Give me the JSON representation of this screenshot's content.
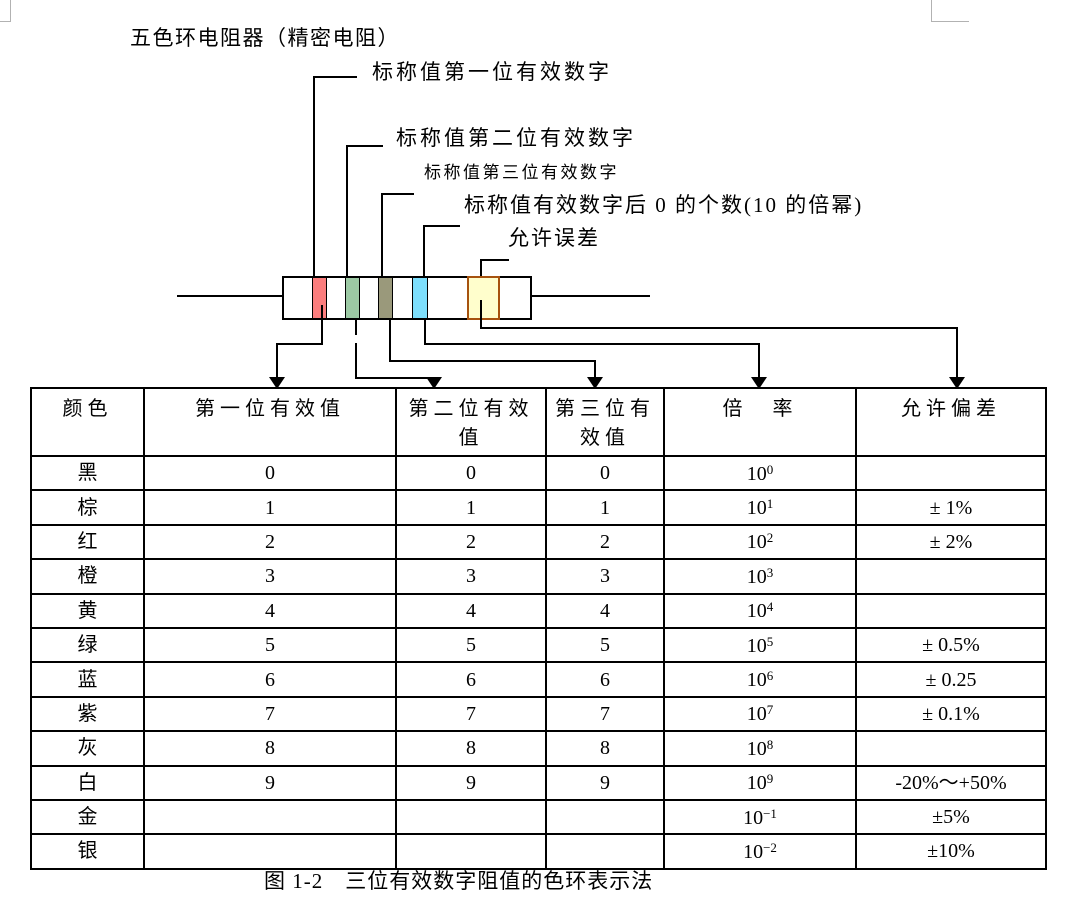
{
  "title": "五色环电阻器（精密电阻）",
  "figure": {
    "labels": {
      "band1": "标称值第一位有效数字",
      "band2": "标称值第二位有效数字",
      "band3": "标称值第三位有效数字",
      "band4": "标称值有效数字后 0 的个数(10 的倍幂)",
      "band5": "允许误差"
    },
    "resistor": {
      "body_color": "#ffffff",
      "bands": [
        {
          "name": "first-digit-band",
          "color": "#fb7d7d"
        },
        {
          "name": "second-digit-band",
          "color": "#9cc9a4"
        },
        {
          "name": "third-digit-band",
          "color": "#9a997b"
        },
        {
          "name": "multiplier-band",
          "color": "#7ddffd"
        },
        {
          "name": "tolerance-band",
          "color": "#fffecc",
          "border": "#a6520e"
        }
      ]
    }
  },
  "table": {
    "headers": [
      [
        "颜色"
      ],
      [
        "第一位有效值"
      ],
      [
        "第二位有效",
        "值"
      ],
      [
        "第三位有",
        "效值"
      ],
      [
        "倍　率"
      ],
      [
        "允许偏差"
      ]
    ],
    "multiplier_base": "10",
    "rows": [
      {
        "color": "黑",
        "d1": "0",
        "d2": "0",
        "d3": "0",
        "exp": "0",
        "tol": ""
      },
      {
        "color": "棕",
        "d1": "1",
        "d2": "1",
        "d3": "1",
        "exp": "1",
        "tol": "± 1%"
      },
      {
        "color": "红",
        "d1": "2",
        "d2": "2",
        "d3": "2",
        "exp": "2",
        "tol": "± 2%"
      },
      {
        "color": "橙",
        "d1": "3",
        "d2": "3",
        "d3": "3",
        "exp": "3",
        "tol": ""
      },
      {
        "color": "黄",
        "d1": "4",
        "d2": "4",
        "d3": "4",
        "exp": "4",
        "tol": ""
      },
      {
        "color": "绿",
        "d1": "5",
        "d2": "5",
        "d3": "5",
        "exp": "5",
        "tol": "± 0.5%"
      },
      {
        "color": "蓝",
        "d1": "6",
        "d2": "6",
        "d3": "6",
        "exp": "6",
        "tol": "± 0.25"
      },
      {
        "color": "紫",
        "d1": "7",
        "d2": "7",
        "d3": "7",
        "exp": "7",
        "tol": "± 0.1%"
      },
      {
        "color": "灰",
        "d1": "8",
        "d2": "8",
        "d3": "8",
        "exp": "8",
        "tol": ""
      },
      {
        "color": "白",
        "d1": "9",
        "d2": "9",
        "d3": "9",
        "exp": "9",
        "tol": "-20%～+50%"
      },
      {
        "color": "金",
        "d1": "",
        "d2": "",
        "d3": "",
        "exp": "−1",
        "tol": "±5%"
      },
      {
        "color": "银",
        "d1": "",
        "d2": "",
        "d3": "",
        "exp": "−2",
        "tol": "±10%"
      }
    ]
  },
  "caption": "图 1-2　三位有效数字阻值的色环表示法"
}
